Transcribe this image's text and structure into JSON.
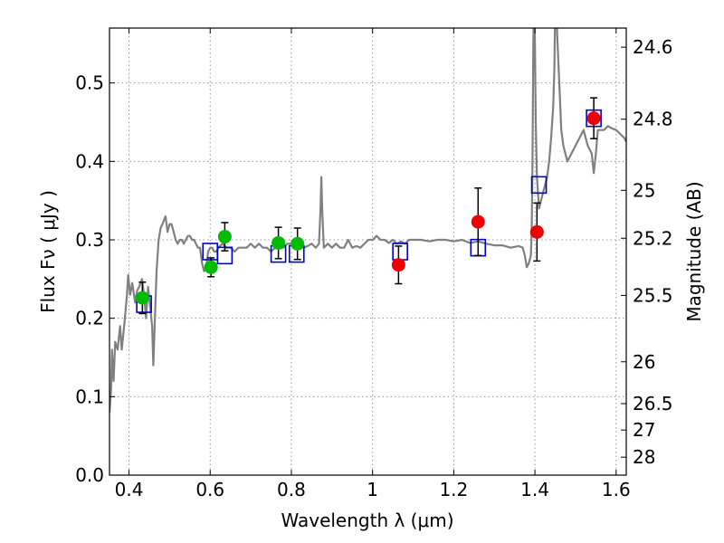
{
  "chart_data": {
    "type": "scatter",
    "title": "",
    "xlabel": "Wavelength  λ (μm)",
    "ylabel": "Flux  Fν  ( μJy )",
    "ylabel_right": "Magnitude (AB)",
    "xlim": [
      0.352,
      1.625
    ],
    "ylim": [
      0.0,
      0.57
    ],
    "grid": true,
    "x_ticks": [
      0.4,
      0.6,
      0.8,
      1.0,
      1.2,
      1.4,
      1.6
    ],
    "x_tick_labels": [
      "0.4",
      "0.6",
      "0.8",
      "1",
      "1.2",
      "1.4",
      "1.6"
    ],
    "y_ticks": [
      0.0,
      0.1,
      0.2,
      0.3,
      0.4,
      0.5
    ],
    "y_tick_labels": [
      "0.0",
      "0.1",
      "0.2",
      "0.3",
      "0.4",
      "0.5"
    ],
    "right_ticks": [
      {
        "flux": 0.5456,
        "label": "24.6"
      },
      {
        "flux": 0.4538,
        "label": "24.8"
      },
      {
        "flux": 0.3631,
        "label": "25"
      },
      {
        "flux": 0.302,
        "label": "25.2"
      },
      {
        "flux": 0.2291,
        "label": "25.5"
      },
      {
        "flux": 0.1445,
        "label": "26"
      },
      {
        "flux": 0.0912,
        "label": "26.5"
      },
      {
        "flux": 0.0575,
        "label": "27"
      },
      {
        "flux": 0.0229,
        "label": "28"
      }
    ],
    "colors": {
      "spectrum": "#808080",
      "model_box": "#0000cc",
      "green_point": "#00bb00",
      "red_point": "#ee0000",
      "error_bar": "#000000",
      "grid": "#999999"
    },
    "series": [
      {
        "kind": "line",
        "points": [
          [
            0.352,
            0.08
          ],
          [
            0.356,
            0.11
          ],
          [
            0.358,
            0.16
          ],
          [
            0.362,
            0.12
          ],
          [
            0.366,
            0.17
          ],
          [
            0.372,
            0.16
          ],
          [
            0.378,
            0.19
          ],
          [
            0.382,
            0.16
          ],
          [
            0.386,
            0.18
          ],
          [
            0.39,
            0.2
          ],
          [
            0.395,
            0.23
          ],
          [
            0.398,
            0.255
          ],
          [
            0.403,
            0.23
          ],
          [
            0.408,
            0.245
          ],
          [
            0.415,
            0.22
          ],
          [
            0.42,
            0.235
          ],
          [
            0.425,
            0.24
          ],
          [
            0.432,
            0.25
          ],
          [
            0.437,
            0.23
          ],
          [
            0.442,
            0.2
          ],
          [
            0.447,
            0.24
          ],
          [
            0.452,
            0.215
          ],
          [
            0.457,
            0.19
          ],
          [
            0.46,
            0.14
          ],
          [
            0.464,
            0.2
          ],
          [
            0.468,
            0.26
          ],
          [
            0.473,
            0.3
          ],
          [
            0.478,
            0.315
          ],
          [
            0.484,
            0.322
          ],
          [
            0.49,
            0.33
          ],
          [
            0.495,
            0.31
          ],
          [
            0.5,
            0.32
          ],
          [
            0.505,
            0.32
          ],
          [
            0.51,
            0.31
          ],
          [
            0.515,
            0.3
          ],
          [
            0.52,
            0.295
          ],
          [
            0.525,
            0.3
          ],
          [
            0.53,
            0.3
          ],
          [
            0.535,
            0.295
          ],
          [
            0.54,
            0.3
          ],
          [
            0.545,
            0.305
          ],
          [
            0.55,
            0.305
          ],
          [
            0.555,
            0.3
          ],
          [
            0.56,
            0.3
          ],
          [
            0.565,
            0.295
          ],
          [
            0.57,
            0.29
          ],
          [
            0.575,
            0.29
          ],
          [
            0.58,
            0.27
          ],
          [
            0.585,
            0.26
          ],
          [
            0.59,
            0.265
          ],
          [
            0.595,
            0.285
          ],
          [
            0.6,
            0.29
          ],
          [
            0.605,
            0.29
          ],
          [
            0.61,
            0.285
          ],
          [
            0.615,
            0.285
          ],
          [
            0.62,
            0.29
          ],
          [
            0.63,
            0.295
          ],
          [
            0.64,
            0.29
          ],
          [
            0.65,
            0.29
          ],
          [
            0.66,
            0.285
          ],
          [
            0.67,
            0.29
          ],
          [
            0.68,
            0.29
          ],
          [
            0.69,
            0.29
          ],
          [
            0.7,
            0.295
          ],
          [
            0.71,
            0.29
          ],
          [
            0.72,
            0.295
          ],
          [
            0.73,
            0.29
          ],
          [
            0.74,
            0.29
          ],
          [
            0.75,
            0.285
          ],
          [
            0.76,
            0.29
          ],
          [
            0.77,
            0.29
          ],
          [
            0.78,
            0.29
          ],
          [
            0.79,
            0.295
          ],
          [
            0.8,
            0.295
          ],
          [
            0.81,
            0.29
          ],
          [
            0.82,
            0.29
          ],
          [
            0.83,
            0.29
          ],
          [
            0.84,
            0.292
          ],
          [
            0.85,
            0.295
          ],
          [
            0.86,
            0.29
          ],
          [
            0.868,
            0.295
          ],
          [
            0.872,
            0.34
          ],
          [
            0.874,
            0.38
          ],
          [
            0.876,
            0.34
          ],
          [
            0.88,
            0.29
          ],
          [
            0.89,
            0.295
          ],
          [
            0.9,
            0.29
          ],
          [
            0.91,
            0.295
          ],
          [
            0.92,
            0.29
          ],
          [
            0.93,
            0.29
          ],
          [
            0.94,
            0.3
          ],
          [
            0.95,
            0.29
          ],
          [
            0.96,
            0.292
          ],
          [
            0.97,
            0.29
          ],
          [
            0.98,
            0.295
          ],
          [
            0.99,
            0.3
          ],
          [
            1.0,
            0.3
          ],
          [
            1.01,
            0.305
          ],
          [
            1.02,
            0.3
          ],
          [
            1.03,
            0.3
          ],
          [
            1.04,
            0.296
          ],
          [
            1.05,
            0.3
          ],
          [
            1.06,
            0.295
          ],
          [
            1.07,
            0.298
          ],
          [
            1.08,
            0.295
          ],
          [
            1.09,
            0.3
          ],
          [
            1.1,
            0.3
          ],
          [
            1.12,
            0.3
          ],
          [
            1.14,
            0.298
          ],
          [
            1.16,
            0.3
          ],
          [
            1.18,
            0.3
          ],
          [
            1.2,
            0.298
          ],
          [
            1.22,
            0.3
          ],
          [
            1.24,
            0.296
          ],
          [
            1.26,
            0.298
          ],
          [
            1.28,
            0.295
          ],
          [
            1.3,
            0.293
          ],
          [
            1.32,
            0.293
          ],
          [
            1.34,
            0.29
          ],
          [
            1.36,
            0.292
          ],
          [
            1.37,
            0.29
          ],
          [
            1.375,
            0.28
          ],
          [
            1.38,
            0.265
          ],
          [
            1.385,
            0.27
          ],
          [
            1.39,
            0.28
          ],
          [
            1.392,
            0.31
          ],
          [
            1.394,
            0.4
          ],
          [
            1.396,
            0.55
          ],
          [
            1.398,
            0.62
          ],
          [
            1.4,
            0.55
          ],
          [
            1.402,
            0.45
          ],
          [
            1.405,
            0.38
          ],
          [
            1.41,
            0.34
          ],
          [
            1.415,
            0.35
          ],
          [
            1.42,
            0.36
          ],
          [
            1.425,
            0.37
          ],
          [
            1.43,
            0.38
          ],
          [
            1.435,
            0.4
          ],
          [
            1.44,
            0.43
          ],
          [
            1.445,
            0.47
          ],
          [
            1.448,
            0.52
          ],
          [
            1.45,
            0.6
          ],
          [
            1.452,
            0.62
          ],
          [
            1.455,
            0.56
          ],
          [
            1.46,
            0.5
          ],
          [
            1.465,
            0.44
          ],
          [
            1.47,
            0.42
          ],
          [
            1.475,
            0.41
          ],
          [
            1.48,
            0.4
          ],
          [
            1.49,
            0.41
          ],
          [
            1.5,
            0.42
          ],
          [
            1.51,
            0.43
          ],
          [
            1.52,
            0.44
          ],
          [
            1.53,
            0.42
          ],
          [
            1.54,
            0.41
          ],
          [
            1.545,
            0.385
          ],
          [
            1.55,
            0.41
          ],
          [
            1.555,
            0.44
          ],
          [
            1.56,
            0.44
          ],
          [
            1.57,
            0.44
          ],
          [
            1.58,
            0.445
          ],
          [
            1.59,
            0.442
          ],
          [
            1.6,
            0.44
          ],
          [
            1.61,
            0.435
          ],
          [
            1.62,
            0.43
          ],
          [
            1.625,
            0.425
          ]
        ]
      },
      {
        "kind": "model",
        "points": [
          [
            0.437,
            0.218
          ],
          [
            0.6,
            0.285
          ],
          [
            0.636,
            0.28
          ],
          [
            0.768,
            0.282
          ],
          [
            0.813,
            0.282
          ],
          [
            1.068,
            0.285
          ],
          [
            1.26,
            0.29
          ],
          [
            1.41,
            0.37
          ],
          [
            1.545,
            0.455
          ]
        ]
      },
      {
        "kind": "observed-green",
        "points": [
          [
            0.433,
            0.226
          ],
          [
            0.602,
            0.265
          ],
          [
            0.636,
            0.304
          ],
          [
            0.768,
            0.296
          ],
          [
            0.815,
            0.295
          ]
        ],
        "errors": [
          0.02,
          0.012,
          0.018,
          0.02,
          0.02
        ]
      },
      {
        "kind": "observed-red",
        "points": [
          [
            1.064,
            0.268
          ],
          [
            1.26,
            0.323
          ],
          [
            1.405,
            0.31
          ],
          [
            1.545,
            0.455
          ]
        ],
        "errors": [
          0.024,
          0.043,
          0.037,
          0.026
        ]
      }
    ]
  }
}
